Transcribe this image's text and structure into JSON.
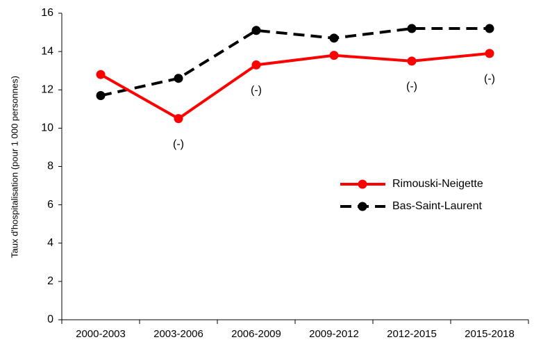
{
  "chart_data": {
    "type": "line",
    "y_label": "Taux d'hospitalisation (pour 1 000 personnes)",
    "categories": [
      "2000-2003",
      "2003-2006",
      "2006-2009",
      "2009-2012",
      "2012-2015",
      "2015-2018"
    ],
    "series": [
      {
        "name": "Rimouski-Neigette",
        "color": "#ff0000",
        "dash": "solid",
        "values": [
          12.8,
          10.5,
          13.3,
          13.8,
          13.5,
          13.9
        ]
      },
      {
        "name": "Bas-Saint-Laurent",
        "color": "#000000",
        "dash": "dashed",
        "values": [
          11.7,
          12.6,
          15.1,
          14.7,
          15.2,
          15.2
        ]
      }
    ],
    "annotations": [
      {
        "text": "(-)",
        "x": "2003-2006"
      },
      {
        "text": "(-)",
        "x": "2006-2009"
      },
      {
        "text": "(-)",
        "x": "2012-2015"
      },
      {
        "text": "(-)",
        "x": "2015-2018"
      }
    ],
    "ylim": [
      0,
      16
    ],
    "yticks": [
      0,
      2,
      4,
      6,
      8,
      10,
      12,
      14,
      16
    ],
    "grid": false,
    "legend": "right"
  }
}
